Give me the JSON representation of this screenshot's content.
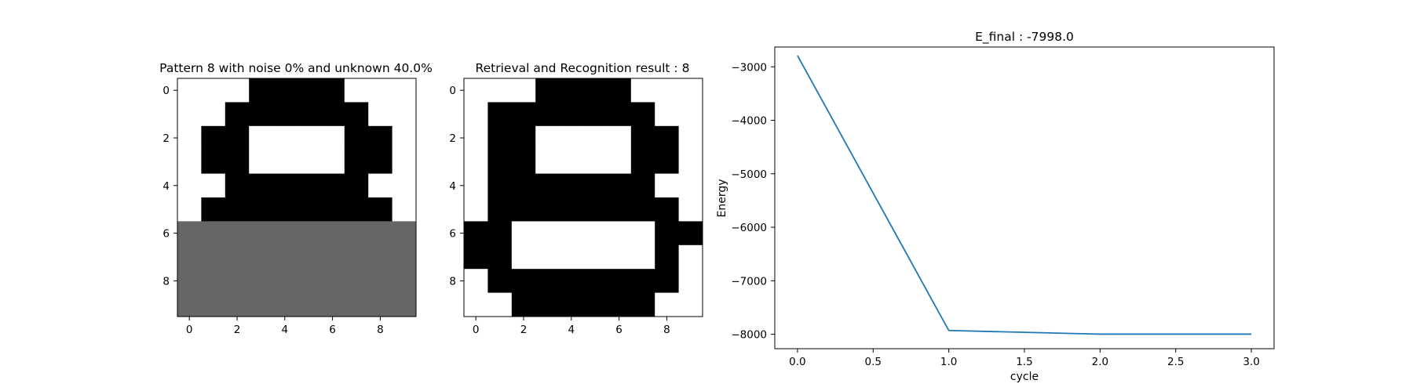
{
  "colors": {
    "black": "#000000",
    "white": "#ffffff",
    "unknown": "#666666",
    "line": "#1f77b4"
  },
  "chart_data": [
    {
      "type": "heatmap",
      "title": "Pattern 8 with noise 0% and unknown 40.0%",
      "x_ticks": [
        "0",
        "2",
        "4",
        "6",
        "8"
      ],
      "y_ticks": [
        "0",
        "2",
        "4",
        "6",
        "8"
      ],
      "legend": "value 1 = black, 0 = white, -1 = unknown (gray)",
      "grid": [
        [
          0,
          0,
          0,
          1,
          1,
          1,
          1,
          0,
          0,
          0
        ],
        [
          0,
          0,
          1,
          1,
          1,
          1,
          1,
          1,
          0,
          0
        ],
        [
          0,
          1,
          1,
          0,
          0,
          0,
          0,
          1,
          1,
          0
        ],
        [
          0,
          1,
          1,
          0,
          0,
          0,
          0,
          1,
          1,
          0
        ],
        [
          0,
          0,
          1,
          1,
          1,
          1,
          1,
          1,
          0,
          0
        ],
        [
          0,
          1,
          1,
          1,
          1,
          1,
          1,
          1,
          1,
          0
        ],
        [
          -1,
          -1,
          -1,
          -1,
          -1,
          -1,
          -1,
          -1,
          -1,
          -1
        ],
        [
          -1,
          -1,
          -1,
          -1,
          -1,
          -1,
          -1,
          -1,
          -1,
          -1
        ],
        [
          -1,
          -1,
          -1,
          -1,
          -1,
          -1,
          -1,
          -1,
          -1,
          -1
        ],
        [
          -1,
          -1,
          -1,
          -1,
          -1,
          -1,
          -1,
          -1,
          -1,
          -1
        ]
      ]
    },
    {
      "type": "heatmap",
      "title": "Retrieval and Recognition result : 8",
      "x_ticks": [
        "0",
        "2",
        "4",
        "6",
        "8"
      ],
      "y_ticks": [
        "0",
        "2",
        "4",
        "6",
        "8"
      ],
      "legend": "value 1 = black, 0 = white",
      "grid": [
        [
          0,
          0,
          0,
          1,
          1,
          1,
          1,
          0,
          0,
          0
        ],
        [
          0,
          1,
          1,
          1,
          1,
          1,
          1,
          1,
          0,
          0
        ],
        [
          0,
          1,
          1,
          0,
          0,
          0,
          0,
          1,
          1,
          0
        ],
        [
          0,
          1,
          1,
          0,
          0,
          0,
          0,
          1,
          1,
          0
        ],
        [
          0,
          1,
          1,
          1,
          1,
          1,
          1,
          1,
          0,
          0
        ],
        [
          0,
          1,
          1,
          1,
          1,
          1,
          1,
          1,
          1,
          0
        ],
        [
          1,
          1,
          0,
          0,
          0,
          0,
          0,
          0,
          1,
          1
        ],
        [
          1,
          1,
          0,
          0,
          0,
          0,
          0,
          0,
          1,
          0
        ],
        [
          0,
          1,
          1,
          1,
          1,
          1,
          1,
          1,
          1,
          0
        ],
        [
          0,
          0,
          1,
          1,
          1,
          1,
          1,
          1,
          0,
          0
        ]
      ]
    },
    {
      "type": "line",
      "title": "E_final : -7998.0",
      "xlabel": "cycle",
      "ylabel": "Energy",
      "x": [
        0,
        1,
        2,
        3
      ],
      "series": [
        {
          "values": [
            -2790,
            -7930,
            -7998,
            -7998
          ]
        }
      ],
      "xlim": [
        -0.15,
        3.15
      ],
      "ylim": [
        -8270,
        -2630
      ],
      "x_ticks": [
        0,
        0.5,
        1,
        1.5,
        2,
        2.5,
        3
      ],
      "x_tick_labels": [
        "0.0",
        "0.5",
        "1.0",
        "1.5",
        "2.0",
        "2.5",
        "3.0"
      ],
      "y_ticks": [
        -3000,
        -4000,
        -5000,
        -6000,
        -7000,
        -8000
      ],
      "y_tick_labels": [
        "−3000",
        "−4000",
        "−5000",
        "−6000",
        "−7000",
        "−8000"
      ],
      "grid": false
    }
  ]
}
